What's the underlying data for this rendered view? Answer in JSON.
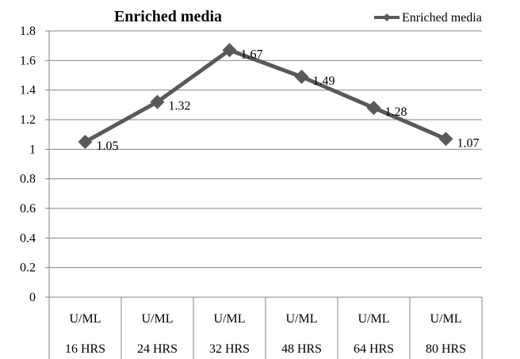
{
  "chart_data": {
    "type": "line",
    "title": "Enriched media",
    "xlabel": "",
    "ylabel": "",
    "ylim": [
      0,
      1.8
    ],
    "yticks": [
      "0",
      "0.2",
      "0.4",
      "0.6",
      "0.8",
      "1",
      "1.2",
      "1.4",
      "1.6",
      "1.8"
    ],
    "categories": [
      {
        "line1": "U/ML",
        "line2": "16 HRS"
      },
      {
        "line1": "U/ML",
        "line2": "24 HRS"
      },
      {
        "line1": "U/ML",
        "line2": "32 HRS"
      },
      {
        "line1": "U/ML",
        "line2": "48 HRS"
      },
      {
        "line1": "U/ML",
        "line2": "64 HRS"
      },
      {
        "line1": "U/ML",
        "line2": "80 HRS"
      }
    ],
    "series": [
      {
        "name": "Enriched media",
        "values": [
          1.05,
          1.32,
          1.67,
          1.49,
          1.28,
          1.07
        ],
        "color": "#595959"
      }
    ],
    "data_labels": [
      "1.05",
      "1.32",
      "1.67",
      "1.49",
      "1.28",
      "1.07"
    ],
    "grid": true,
    "legend_position": "top-right",
    "marker": "diamond"
  }
}
